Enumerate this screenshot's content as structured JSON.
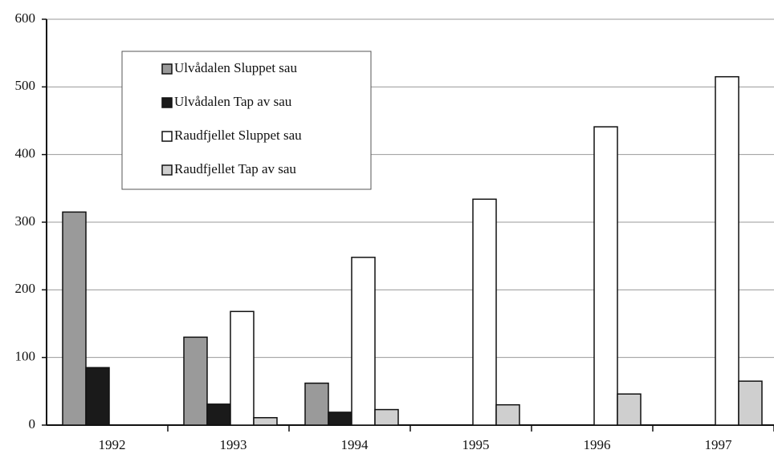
{
  "chart_data": {
    "type": "bar",
    "categories": [
      "1992",
      "1993",
      "1994",
      "1995",
      "1996",
      "1997"
    ],
    "series": [
      {
        "name": "Ulvådalen Sluppet sau",
        "color": "#9a9a9a",
        "values": [
          315,
          130,
          62,
          null,
          null,
          null
        ]
      },
      {
        "name": "Ulvådalen Tap av sau",
        "color": "#1a1a1a",
        "values": [
          85,
          31,
          19,
          null,
          null,
          null
        ]
      },
      {
        "name": "Raudfjellet Sluppet sau",
        "color": "#ffffff",
        "values": [
          null,
          168,
          248,
          334,
          441,
          515
        ]
      },
      {
        "name": "Raudfjellet Tap av sau",
        "color": "#cfcfcf",
        "values": [
          null,
          11,
          23,
          30,
          46,
          65
        ]
      }
    ],
    "ylim": [
      0,
      600
    ],
    "yticks": [
      0,
      100,
      200,
      300,
      400,
      500,
      600
    ],
    "grid": true
  }
}
